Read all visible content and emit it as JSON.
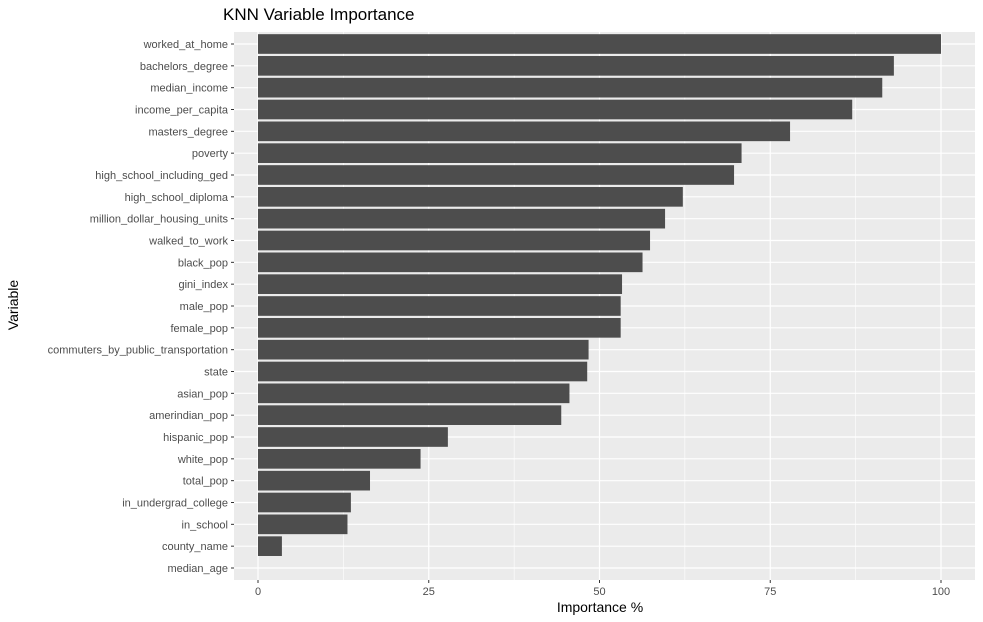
{
  "chart_data": {
    "type": "bar",
    "orientation": "horizontal",
    "title": "KNN Variable Importance",
    "xlabel": "Importance %",
    "ylabel": "Variable",
    "xlim": [
      -3.5,
      103.5
    ],
    "x_ticks": [
      0,
      25,
      50,
      75,
      100
    ],
    "grid": true,
    "legend": "none",
    "colors": {
      "panel": "#ebebeb",
      "grid": "#ffffff",
      "bar": "#4d4d4d",
      "text": "#4d4d4d"
    },
    "categories": [
      "worked_at_home",
      "bachelors_degree",
      "median_income",
      "income_per_capita",
      "masters_degree",
      "poverty",
      "high_school_including_ged",
      "high_school_diploma",
      "million_dollar_housing_units",
      "walked_to_work",
      "black_pop",
      "gini_index",
      "male_pop",
      "female_pop",
      "commuters_by_public_transportation",
      "state",
      "asian_pop",
      "amerindian_pop",
      "hispanic_pop",
      "white_pop",
      "total_pop",
      "in_undergrad_college",
      "in_school",
      "county_name",
      "median_age"
    ],
    "values": [
      100,
      93.1,
      91.4,
      87.0,
      77.9,
      70.8,
      69.7,
      62.2,
      59.6,
      57.4,
      56.3,
      53.3,
      53.1,
      53.1,
      48.4,
      48.2,
      45.6,
      44.4,
      27.8,
      23.8,
      16.4,
      13.6,
      13.1,
      3.5,
      0
    ]
  }
}
